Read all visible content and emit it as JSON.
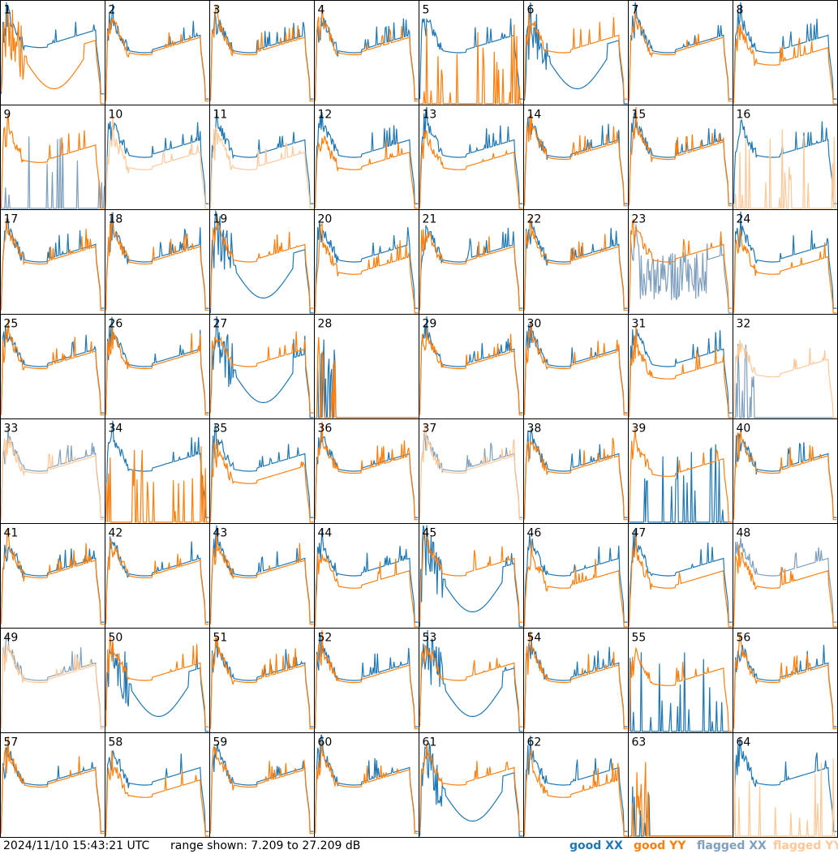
{
  "chart_data": {
    "type": "line",
    "title": "",
    "timestamp": "2024/11/10 15:43:21 UTC",
    "range_text": "range shown: 7.209 to 27.209 dB",
    "ylim": [
      7.209,
      27.209
    ],
    "grid": {
      "rows": 8,
      "cols": 8
    },
    "legend": {
      "placement": "bottom-right",
      "good_xx": "good XX",
      "good_yy": "good YY",
      "flagged_xx": "flagged XX",
      "flagged_yy": "flagged YY"
    },
    "colors": {
      "good_xx": "#1f77b4",
      "good_yy": "#ff7f0e",
      "flagged_xx": "#7f9fbf",
      "flagged_yy": "#ffc898",
      "frame": "#000000"
    },
    "panels": [
      {
        "id": "1",
        "xx": "G",
        "yy": "G",
        "pat": "d"
      },
      {
        "id": "2",
        "xx": "G",
        "yy": "G",
        "pat": "n"
      },
      {
        "id": "3",
        "xx": "G",
        "yy": "G",
        "pat": "n"
      },
      {
        "id": "4",
        "xx": "G",
        "yy": "G",
        "pat": "n"
      },
      {
        "id": "5",
        "xx": "G",
        "yy": "G",
        "pat": "yd"
      },
      {
        "id": "6",
        "xx": "G",
        "yy": "G",
        "pat": "xw"
      },
      {
        "id": "7",
        "xx": "G",
        "yy": "G",
        "pat": "n"
      },
      {
        "id": "8",
        "xx": "G",
        "yy": "G",
        "pat": "s"
      },
      {
        "id": "9",
        "xx": "F",
        "yy": "G",
        "pat": "xd"
      },
      {
        "id": "10",
        "xx": "G",
        "yy": "F",
        "pat": "s"
      },
      {
        "id": "11",
        "xx": "G",
        "yy": "F",
        "pat": "s"
      },
      {
        "id": "12",
        "xx": "G",
        "yy": "G",
        "pat": "s"
      },
      {
        "id": "13",
        "xx": "G",
        "yy": "G",
        "pat": "s"
      },
      {
        "id": "14",
        "xx": "G",
        "yy": "G",
        "pat": "n"
      },
      {
        "id": "15",
        "xx": "G",
        "yy": "G",
        "pat": "n"
      },
      {
        "id": "16",
        "xx": "G",
        "yy": "F",
        "pat": "yd"
      },
      {
        "id": "17",
        "xx": "G",
        "yy": "G",
        "pat": "n"
      },
      {
        "id": "18",
        "xx": "G",
        "yy": "G",
        "pat": "n"
      },
      {
        "id": "19",
        "xx": "G",
        "yy": "G",
        "pat": "xw"
      },
      {
        "id": "20",
        "xx": "G",
        "yy": "G",
        "pat": "s"
      },
      {
        "id": "21",
        "xx": "G",
        "yy": "G",
        "pat": "n"
      },
      {
        "id": "22",
        "xx": "G",
        "yy": "G",
        "pat": "n"
      },
      {
        "id": "23",
        "xx": "F",
        "yy": "G",
        "pat": "xn"
      },
      {
        "id": "24",
        "xx": "G",
        "yy": "G",
        "pat": "s"
      },
      {
        "id": "25",
        "xx": "G",
        "yy": "G",
        "pat": "n"
      },
      {
        "id": "26",
        "xx": "G",
        "yy": "G",
        "pat": "n"
      },
      {
        "id": "27",
        "xx": "G",
        "yy": "G",
        "pat": "xw"
      },
      {
        "id": "28",
        "xx": "G",
        "yy": "G",
        "pat": "dd"
      },
      {
        "id": "29",
        "xx": "G",
        "yy": "G",
        "pat": "n"
      },
      {
        "id": "30",
        "xx": "G",
        "yy": "G",
        "pat": "n"
      },
      {
        "id": "31",
        "xx": "G",
        "yy": "G",
        "pat": "s"
      },
      {
        "id": "32",
        "xx": "F",
        "yy": "F",
        "pat": "fy"
      },
      {
        "id": "33",
        "xx": "F",
        "yy": "F",
        "pat": "n"
      },
      {
        "id": "34",
        "xx": "G",
        "yy": "G",
        "pat": "yd"
      },
      {
        "id": "35",
        "xx": "G",
        "yy": "G",
        "pat": "s"
      },
      {
        "id": "36",
        "xx": "G",
        "yy": "G",
        "pat": "n"
      },
      {
        "id": "37",
        "xx": "F",
        "yy": "F",
        "pat": "n"
      },
      {
        "id": "38",
        "xx": "G",
        "yy": "G",
        "pat": "n"
      },
      {
        "id": "39",
        "xx": "G",
        "yy": "G",
        "pat": "xd"
      },
      {
        "id": "40",
        "xx": "G",
        "yy": "G",
        "pat": "n"
      },
      {
        "id": "41",
        "xx": "G",
        "yy": "G",
        "pat": "n"
      },
      {
        "id": "42",
        "xx": "G",
        "yy": "G",
        "pat": "n"
      },
      {
        "id": "43",
        "xx": "G",
        "yy": "G",
        "pat": "n"
      },
      {
        "id": "44",
        "xx": "G",
        "yy": "G",
        "pat": "s"
      },
      {
        "id": "45",
        "xx": "G",
        "yy": "G",
        "pat": "xw"
      },
      {
        "id": "46",
        "xx": "G",
        "yy": "G",
        "pat": "s"
      },
      {
        "id": "47",
        "xx": "G",
        "yy": "G",
        "pat": "s"
      },
      {
        "id": "48",
        "xx": "F",
        "yy": "G",
        "pat": "s"
      },
      {
        "id": "49",
        "xx": "F",
        "yy": "F",
        "pat": "n"
      },
      {
        "id": "50",
        "xx": "G",
        "yy": "G",
        "pat": "xw"
      },
      {
        "id": "51",
        "xx": "G",
        "yy": "G",
        "pat": "n"
      },
      {
        "id": "52",
        "xx": "G",
        "yy": "G",
        "pat": "n"
      },
      {
        "id": "53",
        "xx": "G",
        "yy": "G",
        "pat": "xw"
      },
      {
        "id": "54",
        "xx": "G",
        "yy": "G",
        "pat": "n"
      },
      {
        "id": "55",
        "xx": "G",
        "yy": "G",
        "pat": "xd"
      },
      {
        "id": "56",
        "xx": "G",
        "yy": "G",
        "pat": "n"
      },
      {
        "id": "57",
        "xx": "G",
        "yy": "G",
        "pat": "n"
      },
      {
        "id": "58",
        "xx": "G",
        "yy": "G",
        "pat": "s"
      },
      {
        "id": "59",
        "xx": "G",
        "yy": "G",
        "pat": "n"
      },
      {
        "id": "60",
        "xx": "G",
        "yy": "G",
        "pat": "n"
      },
      {
        "id": "61",
        "xx": "G",
        "yy": "G",
        "pat": "xw"
      },
      {
        "id": "62",
        "xx": "G",
        "yy": "G",
        "pat": "s"
      },
      {
        "id": "63",
        "xx": "G",
        "yy": "G",
        "pat": "dd"
      },
      {
        "id": "64",
        "xx": "G",
        "yy": "F",
        "pat": "yd"
      }
    ]
  }
}
